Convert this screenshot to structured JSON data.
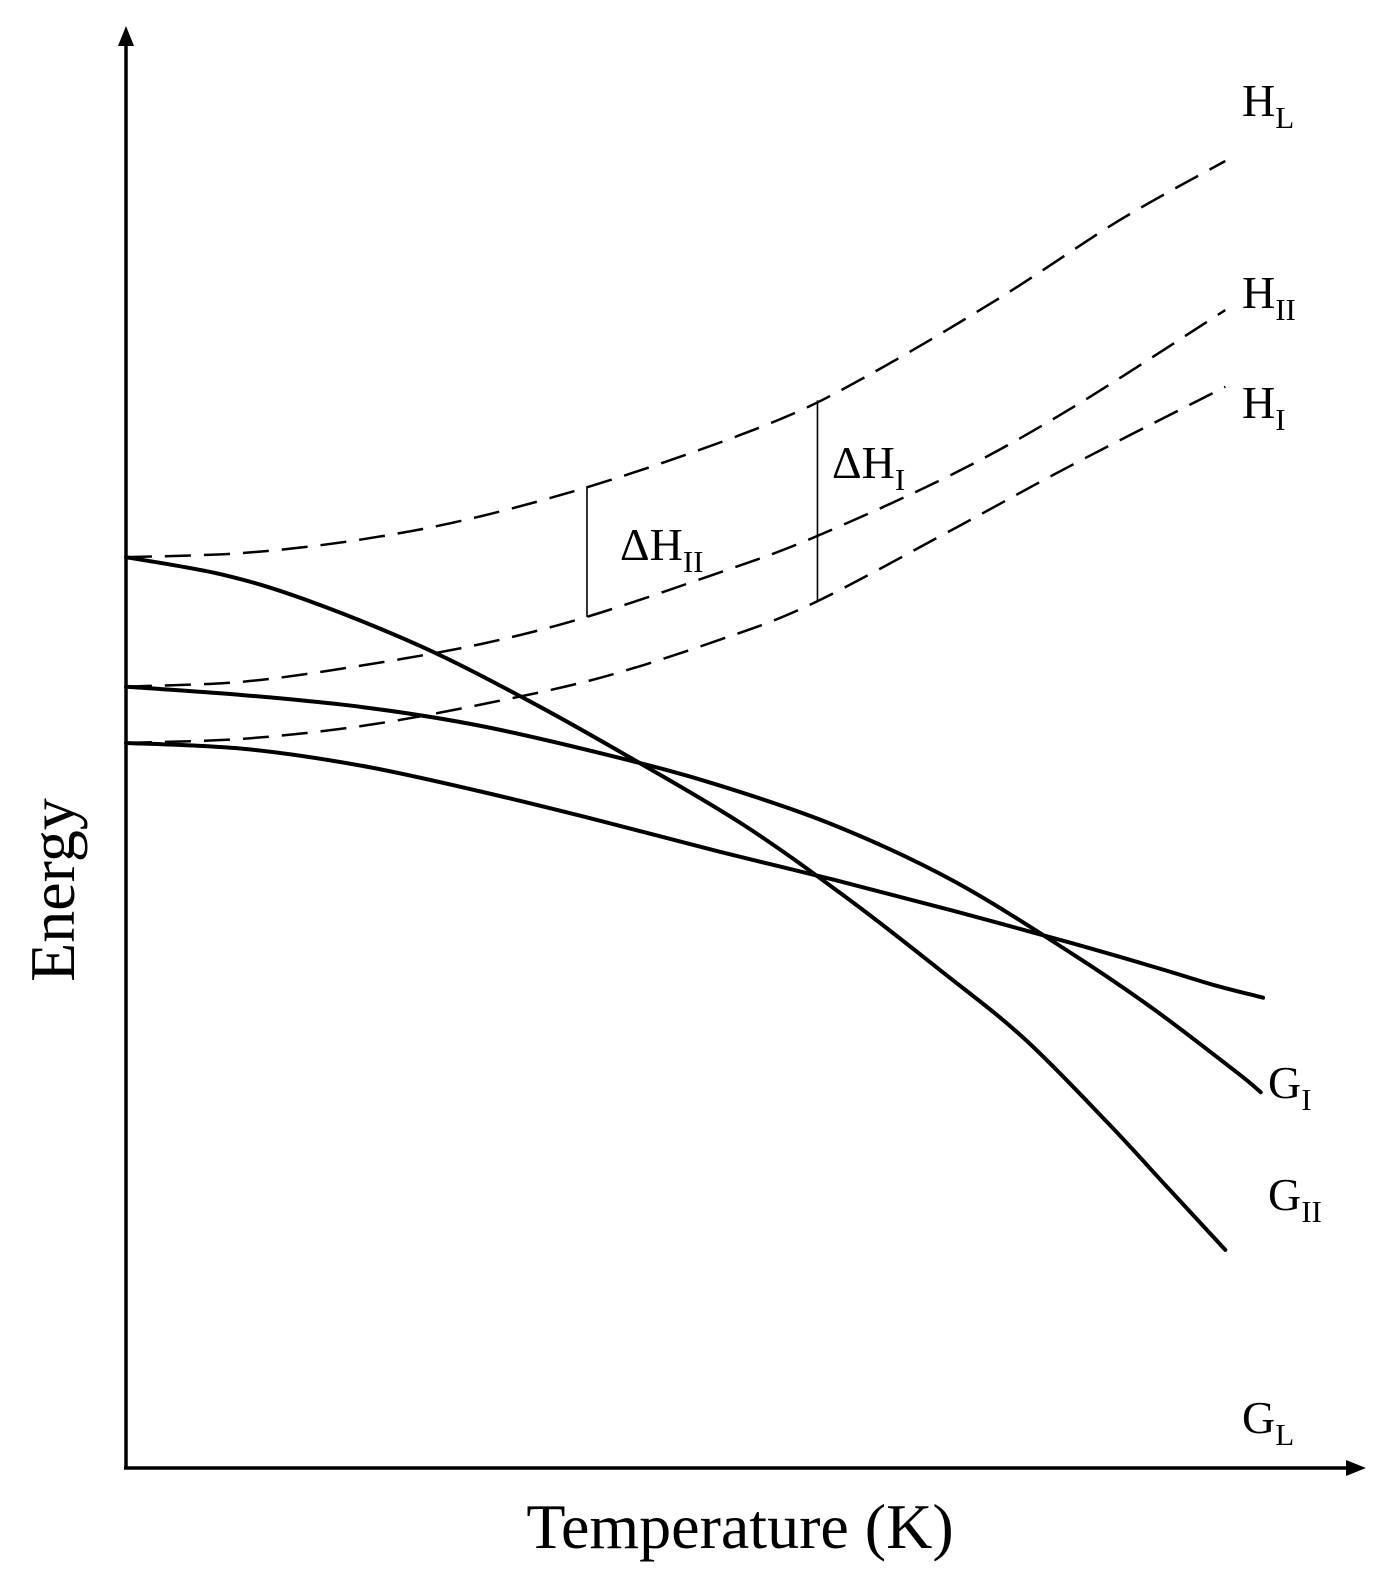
{
  "chart_data": {
    "type": "line",
    "xlabel": "Temperature (K)",
    "ylabel": "Energy",
    "ticks": "none",
    "grid": false,
    "legend": "labels at line ends",
    "series": [
      {
        "id": "HL",
        "label_main": "H",
        "label_sub": "L",
        "style": "dashed",
        "points": [
          [
            0,
            0.535
          ],
          [
            0.1,
            0.54
          ],
          [
            0.2,
            0.556
          ],
          [
            0.3,
            0.583
          ],
          [
            0.42,
            0.63
          ],
          [
            0.55,
            0.695
          ],
          [
            0.63,
            0.75
          ],
          [
            0.74,
            0.84
          ],
          [
            0.84,
            0.93
          ],
          [
            0.93,
            1.0
          ]
        ]
      },
      {
        "id": "HII",
        "label_main": "H",
        "label_sub": "II",
        "style": "dashed",
        "points": [
          [
            0,
            0.383
          ],
          [
            0.1,
            0.389
          ],
          [
            0.2,
            0.408
          ],
          [
            0.3,
            0.433
          ],
          [
            0.39,
            0.465
          ],
          [
            0.5,
            0.516
          ],
          [
            0.58,
            0.557
          ],
          [
            0.7,
            0.633
          ],
          [
            0.8,
            0.71
          ],
          [
            0.93,
            0.825
          ]
        ]
      },
      {
        "id": "HI",
        "label_main": "H",
        "label_sub": "I",
        "style": "dashed",
        "points": [
          [
            0,
            0.317
          ],
          [
            0.1,
            0.322
          ],
          [
            0.2,
            0.337
          ],
          [
            0.3,
            0.362
          ],
          [
            0.4,
            0.393
          ],
          [
            0.5,
            0.437
          ],
          [
            0.58,
            0.48
          ],
          [
            0.7,
            0.568
          ],
          [
            0.8,
            0.643
          ],
          [
            0.93,
            0.735
          ]
        ]
      },
      {
        "id": "GL",
        "label_main": "G",
        "label_sub": "L",
        "style": "solid",
        "points": [
          [
            0,
            0.535
          ],
          [
            0.08,
            0.515
          ],
          [
            0.15,
            0.486
          ],
          [
            0.25,
            0.43
          ],
          [
            0.34,
            0.367
          ],
          [
            0.42,
            0.305
          ],
          [
            0.52,
            0.223
          ],
          [
            0.61,
            0.135
          ],
          [
            0.69,
            0.049
          ],
          [
            0.76,
            -0.03
          ],
          [
            0.83,
            -0.128
          ],
          [
            0.88,
            -0.203
          ],
          [
            0.93,
            -0.278
          ]
        ]
      },
      {
        "id": "GII",
        "label_main": "G",
        "label_sub": "II",
        "style": "solid",
        "points": [
          [
            0,
            0.383
          ],
          [
            0.1,
            0.373
          ],
          [
            0.2,
            0.359
          ],
          [
            0.3,
            0.337
          ],
          [
            0.41,
            0.302
          ],
          [
            0.5,
            0.268
          ],
          [
            0.6,
            0.22
          ],
          [
            0.7,
            0.155
          ],
          [
            0.8,
            0.07
          ],
          [
            0.87,
            0.004
          ],
          [
            0.94,
            -0.07
          ],
          [
            0.96,
            -0.093
          ]
        ]
      },
      {
        "id": "GI",
        "label_main": "G",
        "label_sub": "I",
        "style": "solid",
        "points": [
          [
            0,
            0.317
          ],
          [
            0.1,
            0.31
          ],
          [
            0.2,
            0.29
          ],
          [
            0.3,
            0.26
          ],
          [
            0.4,
            0.226
          ],
          [
            0.5,
            0.19
          ],
          [
            0.6,
            0.156
          ],
          [
            0.7,
            0.12
          ],
          [
            0.8,
            0.082
          ],
          [
            0.87,
            0.054
          ],
          [
            0.92,
            0.033
          ],
          [
            0.962,
            0.018
          ]
        ]
      }
    ],
    "annotations": [
      {
        "id": "dHII",
        "label_main": "ΔH",
        "label_sub": "II",
        "x": 0.39,
        "from": "HII",
        "to": "HL"
      },
      {
        "id": "dHI",
        "label_main": "ΔH",
        "label_sub": "I",
        "x": 0.585,
        "from": "HI",
        "to": "HL"
      }
    ]
  }
}
